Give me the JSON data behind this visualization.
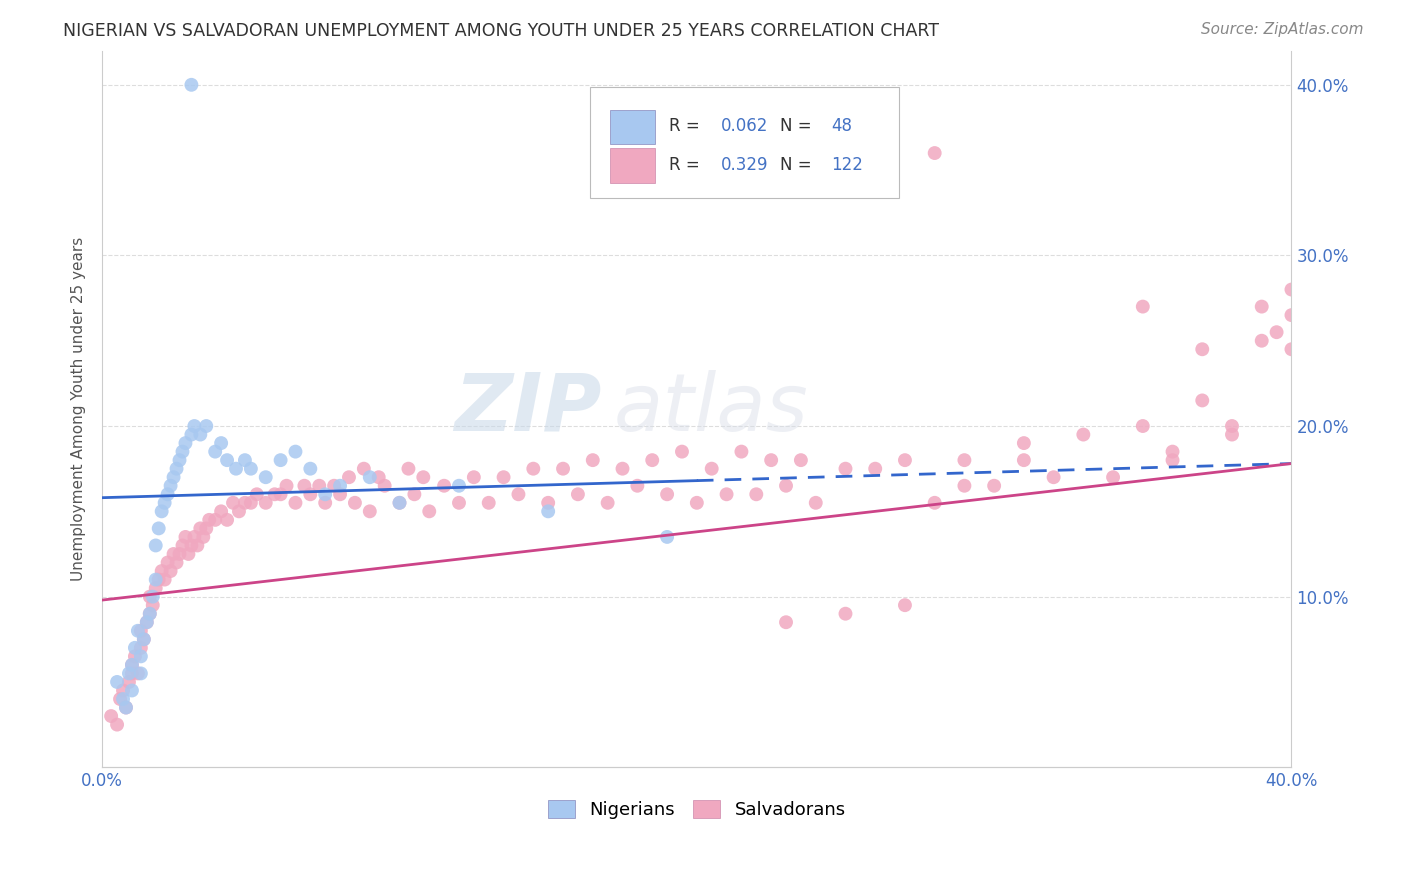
{
  "title": "NIGERIAN VS SALVADORAN UNEMPLOYMENT AMONG YOUTH UNDER 25 YEARS CORRELATION CHART",
  "source": "Source: ZipAtlas.com",
  "ylabel": "Unemployment Among Youth under 25 years",
  "xlim": [
    0.0,
    0.4
  ],
  "ylim": [
    0.0,
    0.42
  ],
  "nigerian_color": "#a8c8f0",
  "salvadoran_color": "#f0a8c0",
  "nigerian_line_color": "#3366cc",
  "salvadoran_line_color": "#cc4488",
  "nigerian_R": 0.062,
  "nigerian_N": 48,
  "salvadoran_R": 0.329,
  "salvadoran_N": 122,
  "watermark_zip": "ZIP",
  "watermark_atlas": "atlas",
  "background_color": "#ffffff",
  "title_fontsize": 12.5,
  "source_fontsize": 11,
  "tick_fontsize": 12,
  "ylabel_fontsize": 11
}
